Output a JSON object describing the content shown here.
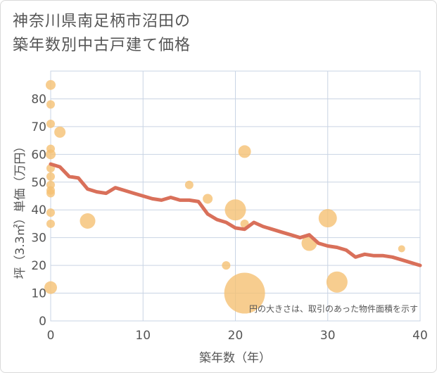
{
  "title_line1": "神奈川県南足柄市沼田の",
  "title_line2": "築年数別中古戸建て価格",
  "chart_data": {
    "type": "scatter",
    "xlabel": "築年数（年）",
    "ylabel": "坪（3.3㎡）単価（万円）",
    "xlim": [
      0,
      40
    ],
    "ylim": [
      0,
      90
    ],
    "xticks": [
      0,
      10,
      20,
      30,
      40
    ],
    "yticks": [
      0,
      10,
      20,
      30,
      40,
      50,
      60,
      70,
      80
    ],
    "note": "円の大きさは、取引のあった物件面積を示す",
    "colors": {
      "bubble": "#f5c173",
      "line": "#d9705a",
      "grid": "#c9d4e4"
    },
    "points": [
      {
        "x": 0,
        "y": 85,
        "s": 7
      },
      {
        "x": 0,
        "y": 78,
        "s": 6
      },
      {
        "x": 0,
        "y": 71,
        "s": 6
      },
      {
        "x": 0,
        "y": 62,
        "s": 6
      },
      {
        "x": 0,
        "y": 60,
        "s": 7
      },
      {
        "x": 0,
        "y": 55,
        "s": 6
      },
      {
        "x": 0,
        "y": 52,
        "s": 6
      },
      {
        "x": 0,
        "y": 49,
        "s": 6
      },
      {
        "x": 0,
        "y": 47,
        "s": 6
      },
      {
        "x": 0,
        "y": 46,
        "s": 6
      },
      {
        "x": 0,
        "y": 39,
        "s": 6
      },
      {
        "x": 0,
        "y": 35,
        "s": 6
      },
      {
        "x": 0,
        "y": 12,
        "s": 9
      },
      {
        "x": 1,
        "y": 68,
        "s": 8
      },
      {
        "x": 4,
        "y": 36,
        "s": 11
      },
      {
        "x": 15,
        "y": 49,
        "s": 6
      },
      {
        "x": 17,
        "y": 44,
        "s": 7
      },
      {
        "x": 19,
        "y": 20,
        "s": 6
      },
      {
        "x": 20,
        "y": 40,
        "s": 15
      },
      {
        "x": 21,
        "y": 61,
        "s": 9
      },
      {
        "x": 21,
        "y": 35,
        "s": 6
      },
      {
        "x": 21,
        "y": 10,
        "s": 29
      },
      {
        "x": 28,
        "y": 28,
        "s": 11
      },
      {
        "x": 30,
        "y": 37,
        "s": 13
      },
      {
        "x": 31,
        "y": 14,
        "s": 15
      },
      {
        "x": 38,
        "y": 26,
        "s": 5
      }
    ],
    "trend": {
      "x": [
        0,
        1,
        2,
        3,
        4,
        5,
        6,
        7,
        8,
        9,
        10,
        11,
        12,
        13,
        14,
        15,
        16,
        17,
        18,
        19,
        20,
        21,
        22,
        23,
        24,
        25,
        26,
        27,
        28,
        29,
        30,
        31,
        32,
        33,
        34,
        35,
        36,
        37,
        38,
        39,
        40
      ],
      "y": [
        56.5,
        55.5,
        52,
        51.5,
        47.5,
        46.5,
        46,
        48,
        47,
        46,
        45,
        44,
        43.5,
        44.5,
        43.5,
        43.5,
        43,
        38.5,
        36.5,
        35.5,
        33.5,
        33,
        35.5,
        34,
        33,
        32,
        31,
        30,
        31,
        28,
        27,
        26.5,
        25.5,
        23,
        24,
        23.5,
        23.5,
        23,
        22,
        21,
        20
      ]
    }
  }
}
